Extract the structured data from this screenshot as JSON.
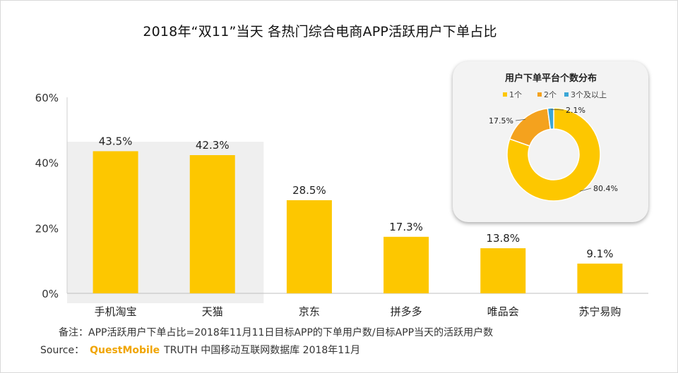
{
  "title": "2018年“双11”当天 各热门综合电商APP活跃用户下单占比",
  "note": "备注：APP活跃用户下单占比=2018年11月11日目标APP的下单用户数/目标APP当天的活跃用户数",
  "source": {
    "label": "Source：",
    "brand": "QuestMobile",
    "text": "TRUTH 中国移动互联网数据库 2018年11月"
  },
  "colors": {
    "bar": "#fdc700",
    "highlight_band": "#efefef",
    "pie_one": "#fdc700",
    "pie_two": "#f4a21e",
    "pie_three_plus": "#3aa6d6"
  },
  "chart_data": [
    {
      "type": "bar",
      "title": "",
      "categories": [
        "手机淘宝",
        "天猫",
        "京东",
        "拼多多",
        "唯品会",
        "苏宁易购"
      ],
      "values": [
        43.5,
        42.3,
        28.5,
        17.3,
        13.8,
        9.1
      ],
      "value_labels": [
        "43.5%",
        "42.3%",
        "28.5%",
        "17.3%",
        "13.8%",
        "9.1%"
      ],
      "ylim": [
        0,
        60
      ],
      "yticks": [
        "0%",
        "20%",
        "40%",
        "60%"
      ],
      "highlighted_categories": [
        "手机淘宝",
        "天猫"
      ]
    },
    {
      "type": "pie",
      "title": "用户下单平台个数分布",
      "labels": [
        "1个",
        "2个",
        "3个及以上"
      ],
      "values": [
        80.4,
        17.5,
        2.1
      ],
      "value_labels": [
        "80.4%",
        "17.5%",
        "2.1%"
      ],
      "legend": "top",
      "donut": true
    }
  ]
}
